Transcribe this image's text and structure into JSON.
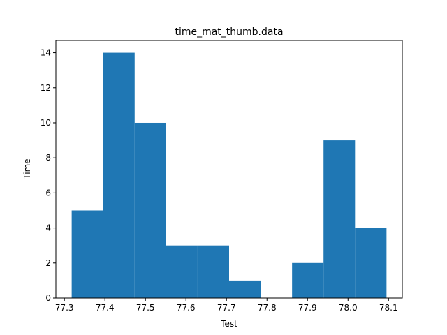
{
  "chart_data": {
    "type": "bar",
    "title": "time_mat_thumb.data",
    "xlabel": "Test",
    "ylabel": "Time",
    "bin_edges": [
      77.318,
      77.3957,
      77.4734,
      77.5511,
      77.6288,
      77.7065,
      77.7842,
      77.8619,
      77.9396,
      78.0173,
      78.095
    ],
    "values": [
      5,
      14,
      10,
      3,
      3,
      1,
      0,
      2,
      9,
      4
    ],
    "bar_color": "#1f77b4",
    "xlim": [
      77.279,
      78.134
    ],
    "ylim": [
      0,
      14.7
    ],
    "xticks": [
      77.3,
      77.4,
      77.5,
      77.6,
      77.7,
      77.8,
      77.9,
      78.0,
      78.1
    ],
    "xtick_labels": [
      "77.3",
      "77.4",
      "77.5",
      "77.6",
      "77.7",
      "77.8",
      "77.9",
      "78.0",
      "78.1"
    ],
    "yticks": [
      0,
      2,
      4,
      6,
      8,
      10,
      12,
      14
    ],
    "ytick_labels": [
      "0",
      "2",
      "4",
      "6",
      "8",
      "10",
      "12",
      "14"
    ],
    "grid": false,
    "legend": "none"
  }
}
